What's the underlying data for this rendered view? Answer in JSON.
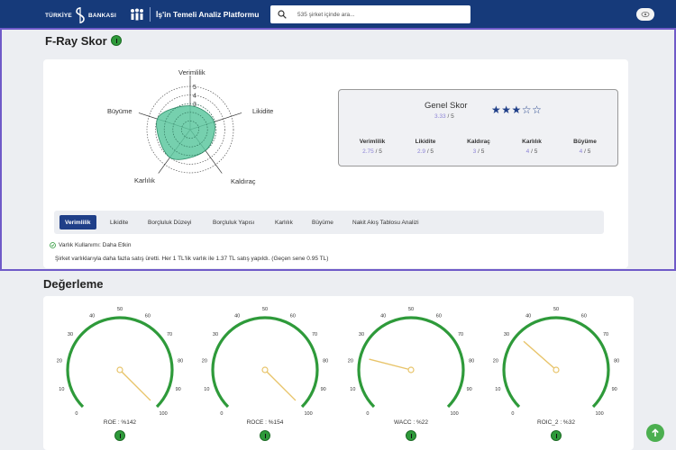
{
  "header": {
    "brand_left": "TÜRKİYE",
    "brand_right": "BANKASI",
    "platform_title": "İş'in Temeli Analiz Platformu",
    "search_placeholder": "535 şirket içinde ara...",
    "brand_color": "#163a7a"
  },
  "fray": {
    "title": "F-Ray Skor",
    "radar": {
      "axes": [
        "Verimlilik",
        "Likidite",
        "Kaldıraç",
        "Karlılık",
        "Büyüme"
      ],
      "ticks": [
        "1",
        "2",
        "3",
        "4",
        "5"
      ],
      "values": [
        2.75,
        2.9,
        3,
        4,
        4
      ],
      "max": 5,
      "fill_color": "#5ec8a0"
    },
    "score": {
      "title": "Genel Skor",
      "value": "3.33",
      "max": "/ 5",
      "stars_filled": 3,
      "stars_total": 5,
      "metrics": [
        {
          "label": "Verimlilik",
          "value": "2.75",
          "max": "/ 5"
        },
        {
          "label": "Likidite",
          "value": "2.9",
          "max": "/ 5"
        },
        {
          "label": "Kaldıraç",
          "value": "3",
          "max": "/ 5"
        },
        {
          "label": "Karlılık",
          "value": "4",
          "max": "/ 5"
        },
        {
          "label": "Büyüme",
          "value": "4",
          "max": "/ 5"
        }
      ]
    },
    "tabs": [
      "Verimlilik",
      "Likidite",
      "Borçluluk Düzeyi",
      "Borçluluk Yapısı",
      "Karlılık",
      "Büyüme",
      "Nakit Akış Tablosu Analizi"
    ],
    "active_tab": "Verimlilik",
    "check_text": "Varlık Kullanımı: Daha Etkin",
    "description": "Şirket varlıklarıyla daha fazla satış üretti. Her 1 TL'lik varlık ile 1.37 TL satış yapıldı. (Geçen sene 0.95 TL)"
  },
  "valuation": {
    "title": "Değerleme",
    "scale_labels": [
      "0",
      "10",
      "20",
      "30",
      "40",
      "50",
      "60",
      "70",
      "80",
      "90",
      "100"
    ],
    "gauges": [
      {
        "label": "ROE : %142",
        "value": 142
      },
      {
        "label": "ROCE : %154",
        "value": 154
      },
      {
        "label": "WACC : %22",
        "value": 22
      },
      {
        "label": "ROIC_2 : %32",
        "value": 32
      }
    ],
    "arc_color": "#2e9a3a",
    "needle_color": "#e8c46a"
  }
}
